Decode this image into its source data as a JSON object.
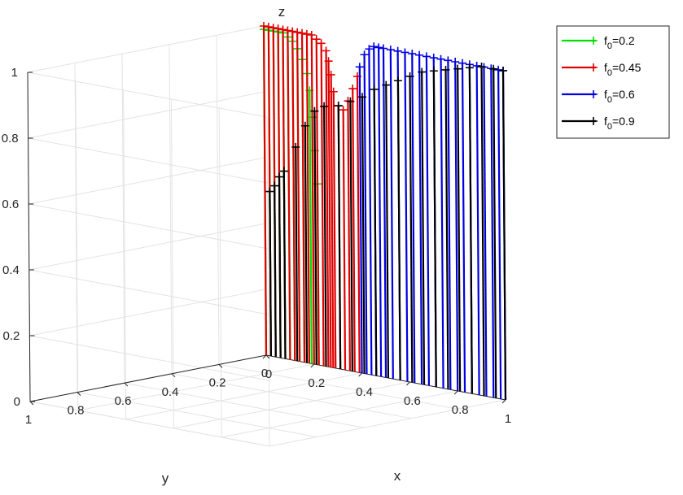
{
  "chart_data": {
    "type": "3d-stem",
    "title": "",
    "xlabel": "x",
    "ylabel": "y",
    "zlabel": "z",
    "xlim": [
      0,
      1
    ],
    "ylim": [
      0,
      1
    ],
    "zlim": [
      0,
      1
    ],
    "xticks": [
      "0",
      "0.2",
      "0.4",
      "0.6",
      "0.8",
      "1"
    ],
    "yticks": [
      "1",
      "0.8",
      "0.6",
      "0.4",
      "0.2",
      "0"
    ],
    "zticks": [
      "0",
      "0.2",
      "0.4",
      "0.6",
      "0.8",
      "1"
    ],
    "grid": true,
    "legend_position": "top-right",
    "series": [
      {
        "name": "f0=0.2",
        "label_main": "f",
        "label_sub": "0",
        "label_rest": "=0.2",
        "color": "#00e000",
        "points": [
          {
            "x": 0.0,
            "y": 0.0,
            "z": 0.99
          },
          {
            "x": 0.02,
            "y": 0.0,
            "z": 0.99
          },
          {
            "x": 0.04,
            "y": 0.0,
            "z": 0.99
          },
          {
            "x": 0.06,
            "y": 0.0,
            "z": 0.99
          },
          {
            "x": 0.08,
            "y": 0.0,
            "z": 0.99
          },
          {
            "x": 0.1,
            "y": 0.0,
            "z": 0.98
          },
          {
            "x": 0.12,
            "y": 0.0,
            "z": 0.97
          },
          {
            "x": 0.14,
            "y": 0.0,
            "z": 0.95
          },
          {
            "x": 0.16,
            "y": 0.0,
            "z": 0.92
          },
          {
            "x": 0.18,
            "y": 0.0,
            "z": 0.88
          },
          {
            "x": 0.19,
            "y": 0.0,
            "z": 0.83
          },
          {
            "x": 0.2,
            "y": 0.0,
            "z": 0.75
          },
          {
            "x": 0.21,
            "y": 0.0,
            "z": 0.65
          },
          {
            "x": 0.22,
            "y": 0.0,
            "z": 0.55
          }
        ]
      },
      {
        "name": "f0=0.45",
        "label_main": "f",
        "label_sub": "0",
        "label_rest": "=0.45",
        "color": "#e00000",
        "points": [
          {
            "x": 0.0,
            "y": 0.0,
            "z": 1.0
          },
          {
            "x": 0.02,
            "y": 0.0,
            "z": 1.0
          },
          {
            "x": 0.04,
            "y": 0.0,
            "z": 1.0
          },
          {
            "x": 0.06,
            "y": 0.0,
            "z": 1.0
          },
          {
            "x": 0.08,
            "y": 0.0,
            "z": 1.0
          },
          {
            "x": 0.1,
            "y": 0.0,
            "z": 1.0
          },
          {
            "x": 0.12,
            "y": 0.0,
            "z": 1.0
          },
          {
            "x": 0.14,
            "y": 0.0,
            "z": 1.0
          },
          {
            "x": 0.16,
            "y": 0.0,
            "z": 1.0
          },
          {
            "x": 0.18,
            "y": 0.0,
            "z": 1.0
          },
          {
            "x": 0.2,
            "y": 0.0,
            "z": 1.0
          },
          {
            "x": 0.22,
            "y": 0.0,
            "z": 0.99
          },
          {
            "x": 0.24,
            "y": 0.0,
            "z": 0.98
          },
          {
            "x": 0.26,
            "y": 0.0,
            "z": 0.96
          },
          {
            "x": 0.27,
            "y": 0.0,
            "z": 0.93
          },
          {
            "x": 0.28,
            "y": 0.0,
            "z": 0.89
          },
          {
            "x": 0.29,
            "y": 0.0,
            "z": 0.84
          },
          {
            "x": 0.31,
            "y": 0.0,
            "z": 0.8
          },
          {
            "x": 0.33,
            "y": 0.0,
            "z": 0.79
          },
          {
            "x": 0.35,
            "y": 0.0,
            "z": 0.82
          },
          {
            "x": 0.37,
            "y": 0.0,
            "z": 0.86
          },
          {
            "x": 0.39,
            "y": 0.0,
            "z": 0.9
          }
        ]
      },
      {
        "name": "f0=0.6",
        "label_main": "f",
        "label_sub": "0",
        "label_rest": "=0.6",
        "color": "#0000e0",
        "points": [
          {
            "x": 0.4,
            "y": 0.0,
            "z": 0.93
          },
          {
            "x": 0.42,
            "y": 0.0,
            "z": 0.97
          },
          {
            "x": 0.44,
            "y": 0.0,
            "z": 0.99
          },
          {
            "x": 0.46,
            "y": 0.0,
            "z": 1.0
          },
          {
            "x": 0.48,
            "y": 0.0,
            "z": 1.0
          },
          {
            "x": 0.5,
            "y": 0.0,
            "z": 1.0
          },
          {
            "x": 0.53,
            "y": 0.0,
            "z": 1.0
          },
          {
            "x": 0.56,
            "y": 0.0,
            "z": 1.0
          },
          {
            "x": 0.59,
            "y": 0.0,
            "z": 1.0
          },
          {
            "x": 0.62,
            "y": 0.0,
            "z": 1.0
          },
          {
            "x": 0.65,
            "y": 0.0,
            "z": 1.0
          },
          {
            "x": 0.68,
            "y": 0.0,
            "z": 1.0
          },
          {
            "x": 0.71,
            "y": 0.0,
            "z": 1.0
          },
          {
            "x": 0.74,
            "y": 0.0,
            "z": 1.0
          },
          {
            "x": 0.77,
            "y": 0.0,
            "z": 1.0
          },
          {
            "x": 0.8,
            "y": 0.0,
            "z": 1.0
          },
          {
            "x": 0.83,
            "y": 0.0,
            "z": 1.0
          },
          {
            "x": 0.86,
            "y": 0.0,
            "z": 1.0
          },
          {
            "x": 0.89,
            "y": 0.0,
            "z": 1.0
          },
          {
            "x": 0.92,
            "y": 0.0,
            "z": 1.0
          },
          {
            "x": 0.95,
            "y": 0.0,
            "z": 1.0
          },
          {
            "x": 0.98,
            "y": 0.0,
            "z": 1.0
          },
          {
            "x": 1.0,
            "y": 0.0,
            "z": 1.0
          }
        ]
      },
      {
        "name": "f0=0.9",
        "label_main": "f",
        "label_sub": "0",
        "label_rest": "=0.9",
        "color": "#000000",
        "points": [
          {
            "x": 0.02,
            "y": 0.0,
            "z": 0.5
          },
          {
            "x": 0.04,
            "y": 0.0,
            "z": 0.52
          },
          {
            "x": 0.06,
            "y": 0.0,
            "z": 0.55
          },
          {
            "x": 0.08,
            "y": 0.0,
            "z": 0.57
          },
          {
            "x": 0.13,
            "y": 0.0,
            "z": 0.65
          },
          {
            "x": 0.17,
            "y": 0.0,
            "z": 0.72
          },
          {
            "x": 0.21,
            "y": 0.0,
            "z": 0.77
          },
          {
            "x": 0.25,
            "y": 0.0,
            "z": 0.79
          },
          {
            "x": 0.31,
            "y": 0.0,
            "z": 0.8
          },
          {
            "x": 0.36,
            "y": 0.0,
            "z": 0.82
          },
          {
            "x": 0.41,
            "y": 0.0,
            "z": 0.84
          },
          {
            "x": 0.46,
            "y": 0.0,
            "z": 0.87
          },
          {
            "x": 0.51,
            "y": 0.0,
            "z": 0.89
          },
          {
            "x": 0.56,
            "y": 0.0,
            "z": 0.91
          },
          {
            "x": 0.61,
            "y": 0.0,
            "z": 0.93
          },
          {
            "x": 0.66,
            "y": 0.0,
            "z": 0.95
          },
          {
            "x": 0.71,
            "y": 0.0,
            "z": 0.96
          },
          {
            "x": 0.76,
            "y": 0.0,
            "z": 0.97
          },
          {
            "x": 0.81,
            "y": 0.0,
            "z": 0.98
          },
          {
            "x": 0.86,
            "y": 0.0,
            "z": 0.99
          },
          {
            "x": 0.91,
            "y": 0.0,
            "z": 1.0
          },
          {
            "x": 0.96,
            "y": 0.0,
            "z": 1.0
          },
          {
            "x": 1.0,
            "y": 0.0,
            "z": 1.0
          }
        ]
      }
    ]
  }
}
